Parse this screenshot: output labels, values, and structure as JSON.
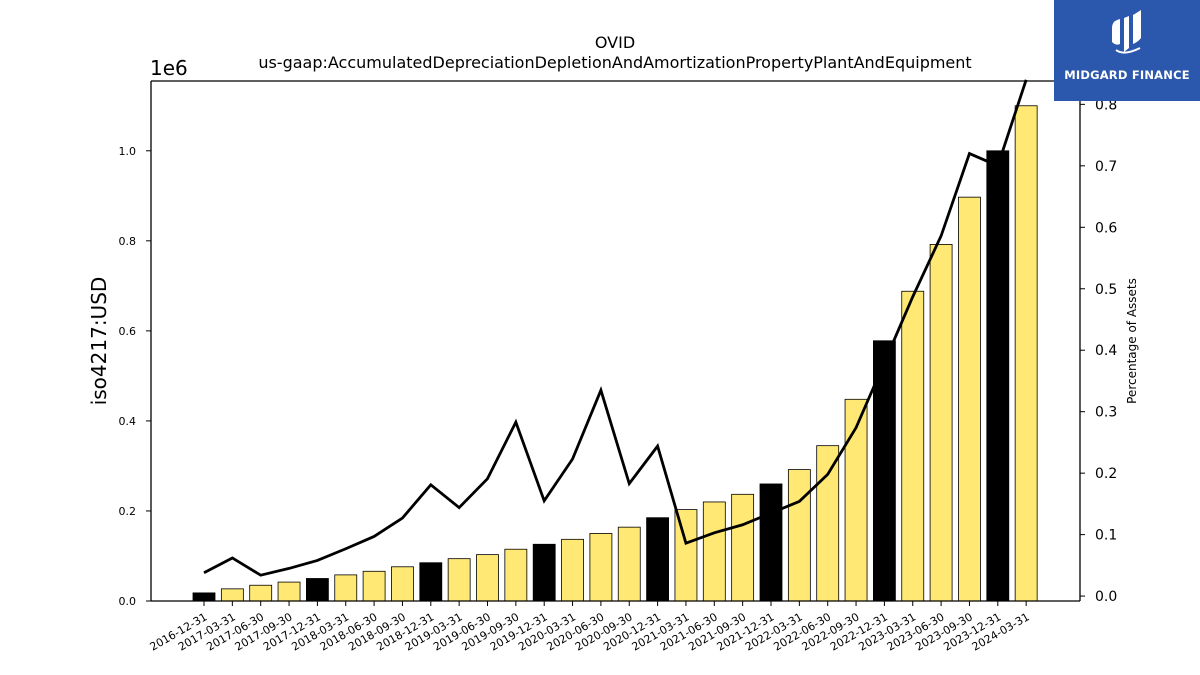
{
  "chart_data": {
    "type": "bar",
    "title": "OVID",
    "subtitle": "us-gaap:AccumulatedDepreciationDepletionAndAmortizationPropertyPlantAndEquipment",
    "ylabel": "iso4217:USD",
    "y2label": "Percentage of Assets",
    "y_offset_text": "1e6",
    "ylim": [
      0,
      1155000
    ],
    "y2lim": [
      -0.008,
      0.838
    ],
    "yticks": [
      "0.0",
      "0.2",
      "0.4",
      "0.6",
      "0.8",
      "1.0"
    ],
    "y2ticks": [
      "0.0",
      "0.1",
      "0.2",
      "0.3",
      "0.4",
      "0.5",
      "0.6",
      "0.7",
      "0.8"
    ],
    "categories": [
      "2016-12-31",
      "2017-03-31",
      "2017-06-30",
      "2017-09-30",
      "2017-12-31",
      "2018-03-31",
      "2018-06-30",
      "2018-09-30",
      "2018-12-31",
      "2019-03-31",
      "2019-06-30",
      "2019-09-30",
      "2019-12-31",
      "2020-03-31",
      "2020-06-30",
      "2020-09-30",
      "2020-12-31",
      "2021-03-31",
      "2021-06-30",
      "2021-09-30",
      "2021-12-31",
      "2022-03-31",
      "2022-06-30",
      "2022-09-30",
      "2022-12-31",
      "2023-03-31",
      "2023-06-30",
      "2023-09-30",
      "2023-12-31",
      "2024-03-31"
    ],
    "series": [
      {
        "type": "bar",
        "values": [
          18000,
          27000,
          35000,
          42000,
          50000,
          58000,
          66000,
          76000,
          85000,
          94000,
          103000,
          115000,
          126000,
          137000,
          150000,
          164000,
          185000,
          203000,
          220000,
          237000,
          260000,
          292000,
          345000,
          448000,
          578000,
          688000,
          792000,
          897000,
          1000000,
          1100000
        ],
        "year_end_color": "#000000",
        "quarter_color": "#ffe873"
      },
      {
        "type": "line",
        "axis": "right",
        "color": "#000000",
        "values": [
          0.038,
          0.062,
          0.034,
          0.045,
          0.058,
          0.077,
          0.097,
          0.127,
          0.181,
          0.144,
          0.191,
          0.283,
          0.155,
          0.223,
          0.335,
          0.183,
          0.244,
          0.086,
          0.103,
          0.116,
          0.135,
          0.154,
          0.198,
          0.274,
          0.38,
          0.487,
          0.586,
          0.72,
          0.7,
          0.84
        ]
      }
    ]
  },
  "logo": {
    "text": "MIDGARD FINANCE",
    "bg_color": "#2b57ad"
  }
}
